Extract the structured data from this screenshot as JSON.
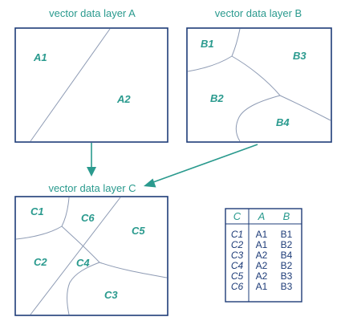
{
  "layers": {
    "a": {
      "title": "vector data layer A",
      "regions": {
        "a1": "A1",
        "a2": "A2"
      }
    },
    "b": {
      "title": "vector data layer B",
      "regions": {
        "b1": "B1",
        "b2": "B2",
        "b3": "B3",
        "b4": "B4"
      }
    },
    "c": {
      "title": "vector data layer C",
      "regions": {
        "c1": "C1",
        "c2": "C2",
        "c3": "C3",
        "c4": "C4",
        "c5": "C5",
        "c6": "C6"
      }
    }
  },
  "table": {
    "headers": [
      "C",
      "A",
      "B"
    ],
    "rows": [
      [
        "C1",
        "A1",
        "B1"
      ],
      [
        "C2",
        "A1",
        "B2"
      ],
      [
        "C3",
        "A2",
        "B4"
      ],
      [
        "C4",
        "A2",
        "B2"
      ],
      [
        "C5",
        "A2",
        "B3"
      ],
      [
        "C6",
        "A1",
        "B3"
      ]
    ]
  },
  "colors": {
    "accent": "#2a9a8e",
    "frame": "#1e3c78",
    "boundary": "#8e9bb4",
    "table_header": "#c5d2ea"
  }
}
